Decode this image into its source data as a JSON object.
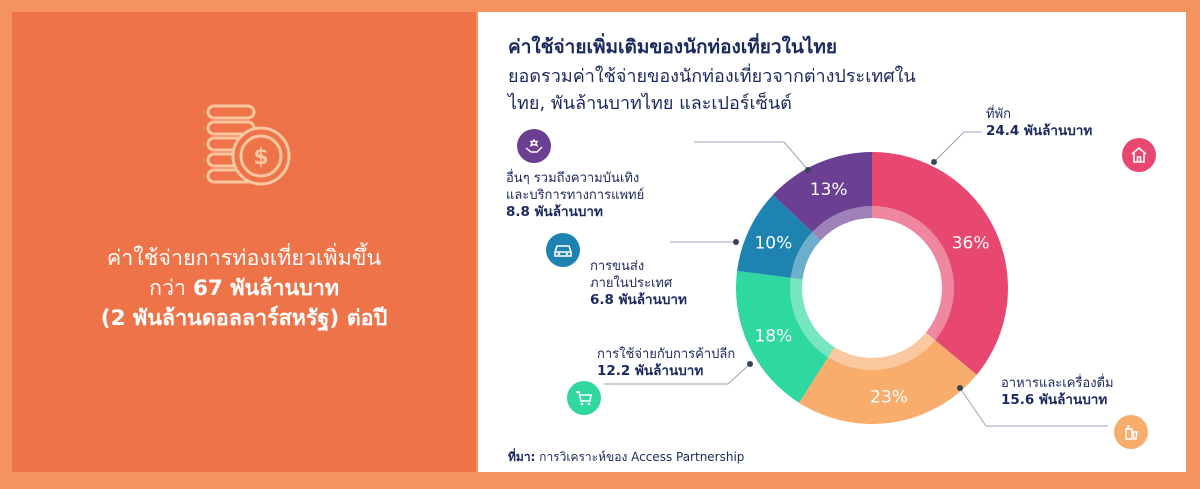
{
  "left_panel": {
    "headline_line1": "ค่าใช้จ่ายการท่องเที่ยวเพิ่มขึ้น",
    "headline_line2_prefix": "กว่า ",
    "headline_line2_amount": "67 พันล้านบาท",
    "headline_line3": "(2 พันล้านดอลลาร์สหรัฐ) ต่อปี",
    "icon": "coins-dollar-icon"
  },
  "chart_data": {
    "type": "pie",
    "title": "ค่าใช้จ่ายเพิ่มเติมของนักท่องเที่ยวในไทย",
    "subtitle_line1": "ยอดรวมค่าใช้จ่ายของนักท่องเที่ยวจากต่างประเทศใน",
    "subtitle_line2": "ไทย, พันล้านบาทไทย และเปอร์เซ็นต์",
    "slices": [
      {
        "label_lines": [
          "ที่พัก"
        ],
        "amount": "24.4 พันล้านบาท",
        "value": 24.4,
        "percent": 36,
        "pct_label": "36%",
        "color": "#e8476f",
        "icon": "house-icon"
      },
      {
        "label_lines": [
          "อาหารและเครื่องดื่ม"
        ],
        "amount": "15.6 พันล้านบาท",
        "value": 15.6,
        "percent": 23,
        "pct_label": "23%",
        "color": "#f8ad6d",
        "icon": "food-drink-icon"
      },
      {
        "label_lines": [
          "การใช้จ่ายกับการค้าปลีก"
        ],
        "amount": "12.2 พันล้านบาท",
        "value": 12.2,
        "percent": 18,
        "pct_label": "18%",
        "color": "#2fd7a1",
        "icon": "shopping-cart-icon"
      },
      {
        "label_lines": [
          "การขนส่ง",
          "ภายในประเทศ"
        ],
        "amount": "6.8 พันล้านบาท",
        "value": 6.8,
        "percent": 10,
        "pct_label": "10%",
        "color": "#1e83b0",
        "icon": "car-icon"
      },
      {
        "label_lines": [
          "อื่นๆ รวมถึงความบันเทิง",
          "และบริการทางการแพทย์"
        ],
        "amount": "8.8 พันล้านบาท",
        "value": 8.8,
        "percent": 13,
        "pct_label": "13%",
        "color": "#6b3f91",
        "icon": "hand-care-icon"
      }
    ]
  },
  "source": {
    "label": "ที่มา:",
    "text": " การวิเคราะห์ของ Access Partnership"
  }
}
